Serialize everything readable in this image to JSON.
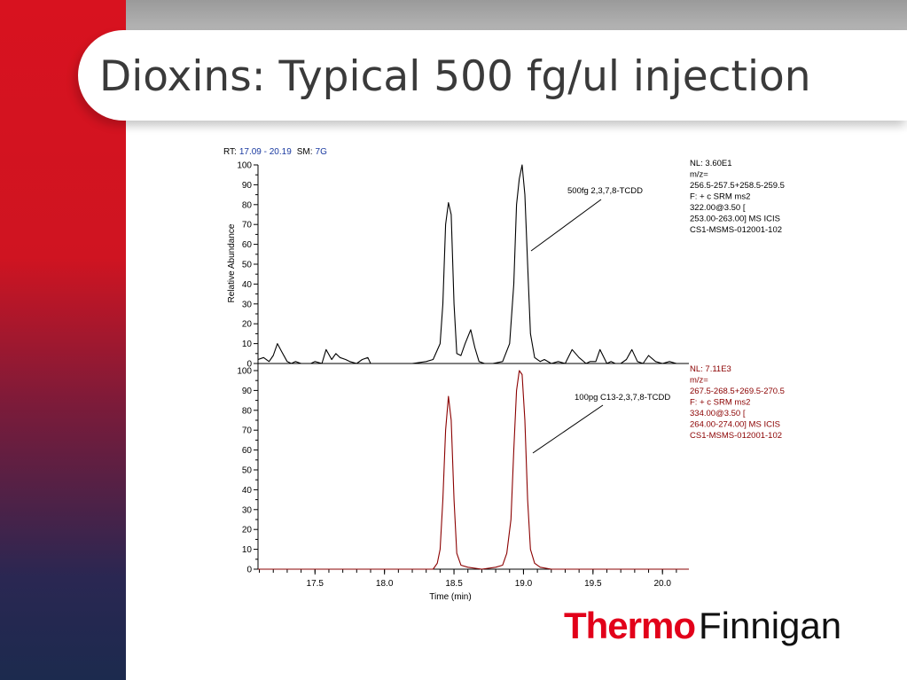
{
  "slide": {
    "title": "Dioxins: Typical 500 fg/ul injection"
  },
  "header": {
    "rt_label": "RT:",
    "rt_value": "17.09 - 20.19",
    "sm_label": "SM:",
    "sm_value": "7G"
  },
  "logo": {
    "thermo": "Thermo",
    "finnigan": "Finnigan"
  },
  "colors": {
    "accent_red": "#d8121f",
    "navy": "#1c2a4e",
    "trace_top": "#000000",
    "trace_bottom": "#8b0000",
    "header_value": "#1a3aa0"
  },
  "chart_data": {
    "type": "line",
    "xlabel": "Time (min)",
    "x_ticks": [
      17.5,
      18.0,
      18.5,
      19.0,
      19.5,
      20.0
    ],
    "x_tick_labels": [
      "17.5",
      "18.0",
      "18.5",
      "19.0",
      "19.5",
      "20.0"
    ],
    "xlim": [
      17.09,
      20.19
    ],
    "panels": [
      {
        "ylabel": "Relative Abundance",
        "ylim": [
          0,
          100
        ],
        "y_ticks": [
          0,
          10,
          20,
          30,
          40,
          50,
          60,
          70,
          80,
          90,
          100
        ],
        "y_tick_labels": [
          "0",
          "10",
          "20",
          "30",
          "40",
          "50",
          "60",
          "70",
          "80",
          "90",
          "100"
        ],
        "annotation": "500fg 2,3,7,8-TCDD",
        "info_lines": [
          "NL: 3.60E1",
          "m/z=",
          "256.5-257.5+258.5-259.5",
          "F: + c SRM ms2",
          "322.00@3.50 [",
          "253.00-263.00]  MS  ICIS",
          "CS1-MSMS-012001-102"
        ],
        "x": [
          17.09,
          17.13,
          17.17,
          17.2,
          17.23,
          17.26,
          17.3,
          17.33,
          17.36,
          17.4,
          17.43,
          17.47,
          17.5,
          17.55,
          17.58,
          17.62,
          17.65,
          17.68,
          17.72,
          17.75,
          17.8,
          17.84,
          17.88,
          17.9,
          17.95,
          18.0,
          18.1,
          18.2,
          18.3,
          18.35,
          18.4,
          18.42,
          18.44,
          18.46,
          18.48,
          18.5,
          18.52,
          18.55,
          18.58,
          18.62,
          18.65,
          18.68,
          18.72,
          18.78,
          18.85,
          18.9,
          18.93,
          18.95,
          18.97,
          18.99,
          19.01,
          19.03,
          19.05,
          19.08,
          19.12,
          19.15,
          19.2,
          19.25,
          19.3,
          19.35,
          19.4,
          19.45,
          19.48,
          19.52,
          19.55,
          19.6,
          19.63,
          19.66,
          19.7,
          19.74,
          19.78,
          19.82,
          19.86,
          19.9,
          19.95,
          20.0,
          20.05,
          20.1,
          20.19
        ],
        "y": [
          2,
          3,
          1,
          4,
          10,
          6,
          1,
          0,
          1,
          0,
          0,
          0,
          1,
          0,
          7,
          2,
          5,
          3,
          2,
          1,
          0,
          2,
          3,
          0,
          0,
          0,
          0,
          0,
          1,
          2,
          10,
          30,
          70,
          81,
          75,
          30,
          5,
          4,
          10,
          17,
          8,
          1,
          0,
          0,
          1,
          10,
          40,
          80,
          93,
          100,
          85,
          50,
          15,
          3,
          1,
          2,
          0,
          1,
          0,
          7,
          3,
          0,
          1,
          1,
          7,
          0,
          1,
          0,
          0,
          2,
          7,
          1,
          0,
          4,
          1,
          0,
          1,
          0,
          0
        ]
      },
      {
        "ylim": [
          0,
          100
        ],
        "y_ticks": [
          0,
          10,
          20,
          30,
          40,
          50,
          60,
          70,
          80,
          90,
          100
        ],
        "y_tick_labels": [
          "0",
          "10",
          "20",
          "30",
          "40",
          "50",
          "60",
          "70",
          "80",
          "90",
          "100"
        ],
        "annotation": "100pg C13-2,3,7,8-TCDD",
        "info_lines": [
          "NL: 7.11E3",
          "m/z=",
          "267.5-268.5+269.5-270.5",
          "F: + c SRM ms2",
          "334.00@3.50 [",
          "264.00-274.00]  MS  ICIS",
          "CS1-MSMS-012001-102"
        ],
        "x": [
          17.09,
          18.3,
          18.35,
          18.38,
          18.4,
          18.42,
          18.44,
          18.46,
          18.48,
          18.5,
          18.52,
          18.55,
          18.6,
          18.7,
          18.8,
          18.85,
          18.88,
          18.91,
          18.93,
          18.95,
          18.97,
          18.99,
          19.01,
          19.03,
          19.05,
          19.08,
          19.12,
          19.2,
          19.4,
          20.19
        ],
        "y": [
          0,
          0,
          0,
          3,
          10,
          35,
          70,
          87,
          75,
          35,
          8,
          2,
          1,
          0,
          1,
          2,
          8,
          25,
          60,
          90,
          100,
          98,
          75,
          35,
          10,
          3,
          1,
          0,
          0,
          0
        ]
      }
    ]
  }
}
